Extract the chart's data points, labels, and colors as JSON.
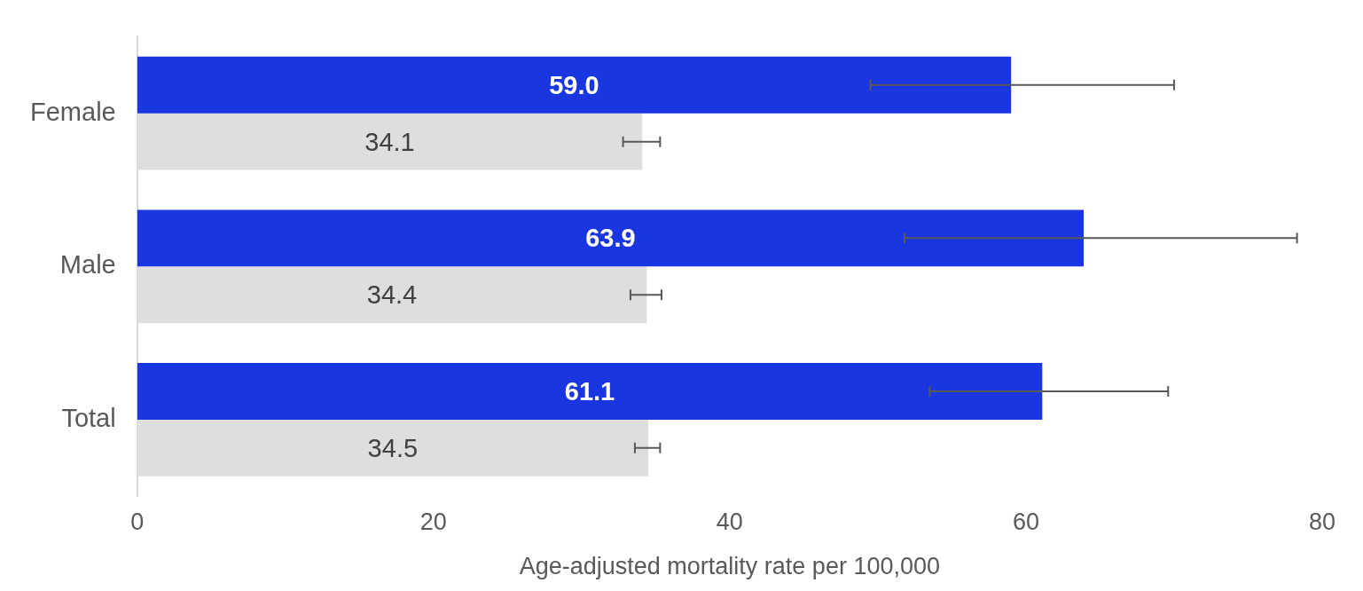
{
  "chart_data": {
    "type": "bar",
    "orientation": "horizontal",
    "categories": [
      "Female",
      "Male",
      "Total"
    ],
    "series": [
      {
        "color": "#1a36e0",
        "values": [
          59.0,
          63.9,
          61.1
        ],
        "value_labels": [
          "59.0",
          "63.9",
          "61.1"
        ],
        "errors": [
          [
            49.5,
            70.0
          ],
          [
            51.8,
            78.3
          ],
          [
            53.5,
            69.6
          ]
        ]
      },
      {
        "color": "#dedede",
        "values": [
          34.1,
          34.4,
          34.5
        ],
        "value_labels": [
          "34.1",
          "34.4",
          "34.5"
        ],
        "errors": [
          [
            32.8,
            35.3
          ],
          [
            33.3,
            35.4
          ],
          [
            33.6,
            35.3
          ]
        ]
      }
    ],
    "xlabel": "Age-adjusted mortality rate per 100,000",
    "xlim": [
      0,
      80
    ],
    "xticks": [
      0,
      20,
      40,
      60,
      80
    ],
    "grid": false,
    "legend": false
  }
}
